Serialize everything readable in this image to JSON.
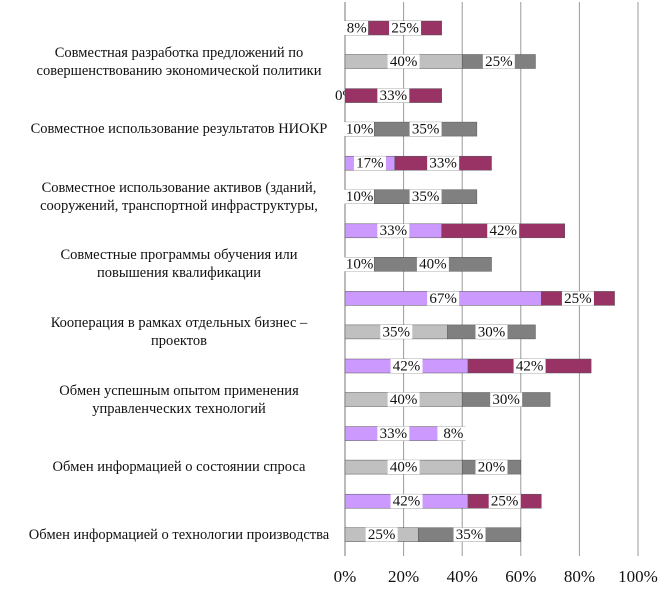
{
  "chart_data": {
    "type": "bar",
    "categories": [
      "Совместная разработка предложений по совершенствованию экономической политики",
      "Совместное использование результатов НИОКР",
      "Совместное использование активов (зданий, сооружений, транспортной инфраструктуры,",
      "Совместные программы обучения или повышения квалификации",
      "Кооперация в рамках отдельных бизнес – проектов",
      "Обмен успешным опытом применения управленческих технологий",
      "Обмен информацией о состоянии спроса",
      "Обмен информацией о технологии производства"
    ],
    "series": [
      {
        "color": "#cc99ff",
        "values": [
          8,
          0,
          17,
          33,
          67,
          42,
          33,
          42
        ],
        "value_labels": [
          "8%",
          "0%",
          "17%",
          "33%",
          "67%",
          "42%",
          "33%",
          "42%"
        ]
      },
      {
        "color": "#993366",
        "values": [
          25,
          33,
          33,
          42,
          25,
          42,
          8,
          25
        ],
        "value_labels": [
          "25%",
          "33%",
          "33%",
          "42%",
          "25%",
          "42%",
          "8%",
          "25%"
        ]
      },
      {
        "color": "#c0c0c0",
        "values": [
          40,
          10,
          10,
          10,
          35,
          40,
          40,
          25
        ],
        "value_labels": [
          "40%",
          "10%",
          "10%",
          "10%",
          "35%",
          "40%",
          "40%",
          "25%"
        ]
      },
      {
        "color": "#808080",
        "values": [
          25,
          35,
          35,
          40,
          30,
          30,
          20,
          35
        ],
        "value_labels": [
          "25%",
          "35%",
          "35%",
          "40%",
          "30%",
          "30%",
          "20%",
          "35%"
        ]
      }
    ],
    "xlim": [
      0,
      100
    ],
    "xticks": [
      {
        "value": 0,
        "label": "0%"
      },
      {
        "value": 20,
        "label": "20%"
      },
      {
        "value": 40,
        "label": "40%"
      },
      {
        "value": 60,
        "label": "60%"
      },
      {
        "value": 80,
        "label": "80%"
      },
      {
        "value": 100,
        "label": "100%"
      }
    ],
    "grid": true
  }
}
